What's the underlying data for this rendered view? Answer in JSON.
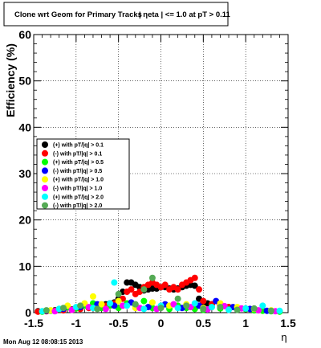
{
  "title_main": "Clone wrt Geom for Primary Tracks",
  "title_cut": "| ηeta | <= 1.0 at pT > 0.11",
  "footer_date": "Mon Aug 12 08:08:15 2013",
  "chart_data": {
    "type": "scatter",
    "xlabel": "η",
    "ylabel": "Efficiency (%)",
    "xlim": [
      -1.5,
      1.5
    ],
    "ylim": [
      0,
      60
    ],
    "x_ticks": [
      "-1.5",
      "-1",
      "-0.5",
      "0",
      "0.5",
      "1",
      "1.5"
    ],
    "y_ticks": [
      "0",
      "10",
      "20",
      "30",
      "40",
      "50",
      "60"
    ],
    "grid": true,
    "legend_position": "left",
    "series": [
      {
        "name": "(+) with pT/|q| > 0.1",
        "color": "#000000",
        "x": [
          -1.45,
          -1.35,
          -1.25,
          -1.15,
          -1.05,
          -0.95,
          -0.85,
          -0.75,
          -0.65,
          -0.6,
          -0.55,
          -0.5,
          -0.45,
          -0.4,
          -0.35,
          -0.3,
          -0.25,
          -0.2,
          -0.15,
          -0.1,
          -0.05,
          0.0,
          0.05,
          0.1,
          0.15,
          0.2,
          0.25,
          0.3,
          0.35,
          0.4,
          0.45,
          0.5,
          0.55,
          0.6,
          0.7,
          0.8,
          0.9,
          1.0,
          1.1,
          1.2,
          1.3,
          1.4
        ],
        "y": [
          0.3,
          0.4,
          0.5,
          0.6,
          0.7,
          0.9,
          1.1,
          1.5,
          1.8,
          2.0,
          2.2,
          3.0,
          4.5,
          6.5,
          6.5,
          6.0,
          5.5,
          4.8,
          5.0,
          5.2,
          5.2,
          5.5,
          5.5,
          5.2,
          5.0,
          5.2,
          5.5,
          5.8,
          6.0,
          5.8,
          3.0,
          2.2,
          2.0,
          1.8,
          1.5,
          1.2,
          1.0,
          0.8,
          0.6,
          0.5,
          0.4,
          0.3
        ]
      },
      {
        "name": "(-) with pT/|q| > 0.1",
        "color": "#ff0000",
        "x": [
          -1.45,
          -1.35,
          -1.25,
          -1.15,
          -1.05,
          -0.95,
          -0.85,
          -0.75,
          -0.65,
          -0.55,
          -0.45,
          -0.4,
          -0.35,
          -0.3,
          -0.25,
          -0.2,
          -0.15,
          -0.1,
          -0.05,
          0.0,
          0.05,
          0.1,
          0.15,
          0.2,
          0.25,
          0.3,
          0.35,
          0.4,
          0.45,
          0.5,
          0.6,
          0.7,
          0.8,
          0.9,
          1.0,
          1.1,
          1.2,
          1.3,
          1.4
        ],
        "y": [
          0.2,
          0.3,
          0.4,
          0.5,
          0.6,
          0.8,
          1.0,
          1.2,
          1.5,
          2.0,
          3.0,
          4.5,
          5.0,
          4.0,
          4.5,
          5.5,
          6.0,
          6.5,
          6.0,
          5.5,
          6.0,
          5.0,
          5.5,
          5.0,
          6.0,
          6.5,
          7.0,
          7.5,
          5.0,
          2.5,
          1.8,
          1.5,
          1.2,
          1.0,
          0.8,
          0.6,
          0.5,
          0.4,
          0.3
        ]
      },
      {
        "name": "(+) with pT/|q| > 0.5",
        "color": "#00ff00",
        "x": [
          -1.4,
          -1.3,
          -1.2,
          -1.1,
          -1.0,
          -0.9,
          -0.8,
          -0.7,
          -0.6,
          -0.5,
          -0.4,
          -0.3,
          -0.2,
          -0.1,
          0.0,
          0.1,
          0.2,
          0.3,
          0.4,
          0.5,
          0.6,
          0.7,
          0.8,
          0.9,
          1.0,
          1.1,
          1.2,
          1.3,
          1.4
        ],
        "y": [
          0.2,
          0.4,
          0.8,
          1.2,
          0.9,
          1.5,
          2.0,
          1.0,
          1.5,
          1.0,
          2.0,
          1.5,
          2.5,
          1.0,
          1.2,
          0.8,
          1.5,
          1.0,
          0.8,
          0.6,
          1.2,
          0.9,
          0.7,
          1.0,
          0.8,
          0.5,
          0.4,
          0.3,
          0.2
        ]
      },
      {
        "name": "(-) with pT/|q| > 0.5",
        "color": "#0000ff",
        "x": [
          -1.35,
          -1.15,
          -0.95,
          -0.75,
          -0.55,
          -0.35,
          -0.15,
          0.05,
          0.25,
          0.45,
          0.65,
          0.85,
          1.05,
          1.25
        ],
        "y": [
          0.4,
          0.8,
          1.2,
          1.8,
          1.5,
          2.2,
          1.2,
          1.8,
          1.0,
          1.5,
          2.5,
          1.2,
          0.8,
          0.4
        ]
      },
      {
        "name": "(+) with pT/|q| > 1.0",
        "color": "#ffff00",
        "x": [
          -1.3,
          -1.1,
          -0.9,
          -0.8,
          -0.7,
          -0.5,
          -0.3,
          -0.1,
          0.1,
          0.3,
          0.5,
          0.7,
          0.9,
          1.1,
          1.3
        ],
        "y": [
          0.5,
          1.5,
          2.0,
          3.5,
          1.8,
          2.5,
          1.0,
          2.2,
          1.5,
          1.8,
          1.0,
          2.0,
          1.2,
          0.8,
          0.5
        ]
      },
      {
        "name": "(-) with pT/|q| > 1.0",
        "color": "#ff00ff",
        "x": [
          -1.25,
          -1.05,
          -0.85,
          -0.65,
          -0.45,
          -0.25,
          -0.05,
          0.15,
          0.35,
          0.55,
          0.75,
          0.95,
          1.15,
          1.35
        ],
        "y": [
          0.3,
          0.6,
          1.2,
          0.8,
          1.5,
          1.0,
          0.8,
          1.8,
          1.2,
          0.7,
          1.4,
          0.9,
          0.5,
          0.3
        ]
      },
      {
        "name": "(+) with pT/|q| > 2.0",
        "color": "#00ffff",
        "x": [
          -1.4,
          -1.2,
          -1.0,
          -0.8,
          -0.6,
          -0.55,
          -0.4,
          -0.2,
          0.0,
          0.2,
          0.4,
          0.6,
          0.8,
          1.0,
          1.2,
          1.4
        ],
        "y": [
          0.3,
          0.8,
          1.2,
          1.0,
          2.0,
          6.5,
          1.5,
          0.8,
          1.5,
          1.0,
          2.0,
          1.2,
          0.6,
          0.9,
          1.5,
          0.4
        ]
      },
      {
        "name": "(-) with pT/|q| > 2.0",
        "color": "#55aa55",
        "x": [
          -1.35,
          -1.15,
          -0.95,
          -0.75,
          -0.5,
          -0.3,
          -0.2,
          -0.1,
          0.0,
          0.2,
          0.3,
          0.5,
          0.7,
          0.9,
          1.1,
          1.3
        ],
        "y": [
          0.5,
          1.0,
          1.5,
          0.8,
          4.0,
          1.8,
          5.0,
          7.5,
          1.0,
          3.0,
          1.5,
          0.8,
          1.2,
          0.6,
          0.9,
          0.4
        ]
      }
    ]
  }
}
